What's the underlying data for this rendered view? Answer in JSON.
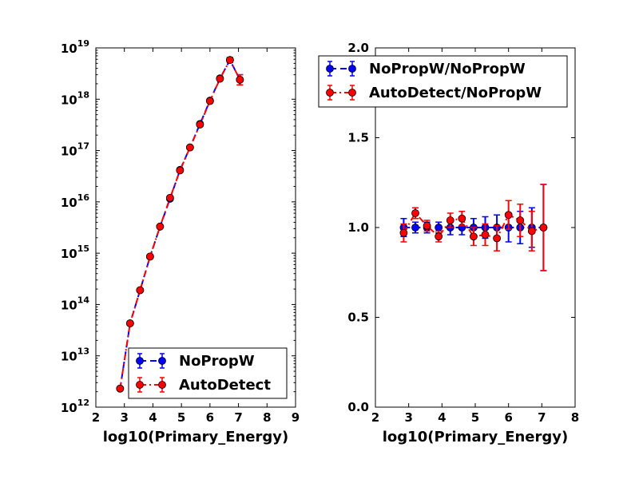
{
  "chart_data": [
    {
      "type": "line",
      "title": "",
      "xlabel": "log10(Primary_Energy)",
      "ylabel": "",
      "xlim": [
        2,
        9
      ],
      "ylim": [
        1000000000000.0,
        1e+19
      ],
      "yscale": "log",
      "xticks": [
        "2",
        "3",
        "4",
        "5",
        "6",
        "7",
        "8",
        "9"
      ],
      "yticks": [
        {
          "base": "10",
          "exp": "12"
        },
        {
          "base": "10",
          "exp": "13"
        },
        {
          "base": "10",
          "exp": "14"
        },
        {
          "base": "10",
          "exp": "15"
        },
        {
          "base": "10",
          "exp": "16"
        },
        {
          "base": "10",
          "exp": "17"
        },
        {
          "base": "10",
          "exp": "18"
        },
        {
          "base": "10",
          "exp": "19"
        }
      ],
      "legend_position": "lower-right",
      "series": [
        {
          "name": "NoPropW",
          "color": "#0000ff",
          "linestyle": "dashed",
          "marker": "circle",
          "x": [
            2.85,
            3.2,
            3.55,
            3.9,
            4.25,
            4.6,
            4.95,
            5.3,
            5.65,
            6.0,
            6.35,
            6.7,
            7.05
          ],
          "y": [
            2300000000000.0,
            43000000000000.0,
            190000000000000.0,
            860000000000000.0,
            3300000000000000.0,
            1.15e+16,
            4.2e+16,
            1.15e+17,
            3.3e+17,
            9.4e+17,
            2.55e+18,
            5.8e+18,
            2.4e+18
          ],
          "err_low": [
            0,
            0,
            0,
            0,
            0,
            0,
            0,
            0,
            0,
            0,
            0,
            6e+17,
            5e+17
          ],
          "err_high": [
            0,
            0,
            0,
            0,
            0,
            0,
            0,
            0,
            0,
            0,
            0,
            7e+17,
            6e+17
          ]
        },
        {
          "name": "AutoDetect",
          "color": "#ff0000",
          "linestyle": "dashdot",
          "marker": "circle",
          "x": [
            2.85,
            3.2,
            3.55,
            3.9,
            4.25,
            4.6,
            4.95,
            5.3,
            5.65,
            6.0,
            6.35,
            6.7,
            7.05
          ],
          "y": [
            2300000000000.0,
            43000000000000.0,
            190000000000000.0,
            860000000000000.0,
            3300000000000000.0,
            1.2e+16,
            4.1e+16,
            1.15e+17,
            3.2e+17,
            9.2e+17,
            2.5e+18,
            5.8e+18,
            2.4e+18
          ],
          "err_low": [
            0,
            0,
            0,
            0,
            0,
            0,
            0,
            0,
            0,
            0,
            0,
            6e+17,
            5e+17
          ],
          "err_high": [
            0,
            0,
            0,
            0,
            0,
            0,
            0,
            0,
            0,
            0,
            0,
            7e+17,
            6e+17
          ]
        }
      ]
    },
    {
      "type": "line",
      "title": "",
      "xlabel": "log10(Primary_Energy)",
      "ylabel": "",
      "xlim": [
        2,
        8
      ],
      "ylim": [
        0.0,
        2.0
      ],
      "yscale": "linear",
      "xticks": [
        "2",
        "3",
        "4",
        "5",
        "6",
        "7",
        "8"
      ],
      "yticks": [
        "0.0",
        "0.5",
        "1.0",
        "1.5",
        "2.0"
      ],
      "legend_position": "upper-right",
      "series": [
        {
          "name": "NoPropW/NoPropW",
          "color": "#0000ff",
          "linestyle": "dashed",
          "marker": "circle",
          "x": [
            2.85,
            3.2,
            3.55,
            3.9,
            4.25,
            4.6,
            4.95,
            5.3,
            5.65,
            6.0,
            6.35,
            6.7,
            7.05
          ],
          "y": [
            1.0,
            1.0,
            1.0,
            1.0,
            1.0,
            1.0,
            1.0,
            1.0,
            1.0,
            1.0,
            1.0,
            1.0,
            1.0
          ],
          "err": [
            0.05,
            0.03,
            0.03,
            0.03,
            0.04,
            0.04,
            0.05,
            0.06,
            0.07,
            0.08,
            0.09,
            0.11,
            0.24
          ]
        },
        {
          "name": "AutoDetect/NoPropW",
          "color": "#ff0000",
          "linestyle": "dashdot",
          "marker": "circle",
          "x": [
            2.85,
            3.2,
            3.55,
            3.9,
            4.25,
            4.6,
            4.95,
            5.3,
            5.65,
            6.0,
            6.35,
            6.7,
            7.05
          ],
          "y": [
            0.97,
            1.08,
            1.01,
            0.95,
            1.04,
            1.05,
            0.95,
            0.96,
            0.94,
            1.07,
            1.04,
            0.98,
            1.0
          ],
          "err": [
            0.05,
            0.03,
            0.03,
            0.03,
            0.04,
            0.04,
            0.05,
            0.06,
            0.07,
            0.08,
            0.09,
            0.11,
            0.24
          ]
        }
      ]
    }
  ]
}
